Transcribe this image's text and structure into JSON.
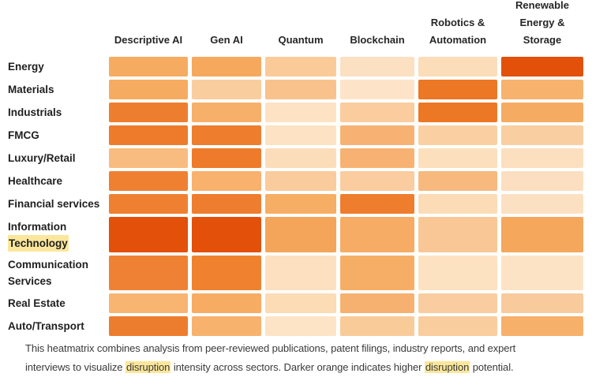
{
  "colors": {
    "background": "#FFFFFF",
    "highlight": "#FBE79B",
    "header_text": "#262626",
    "row_label_text": "#1F1F1F",
    "caption_text": "#3A3A3A",
    "scale_darkest": "#E2500A",
    "scale_dark": "#EE7D2E",
    "scale_medium": "#F6AC60",
    "scale_light": "#FACB99",
    "scale_lightest": "#FCE0C2"
  },
  "header": {
    "column_lines": [
      [
        "Descriptive AI"
      ],
      [
        "Gen AI"
      ],
      [
        "Quantum"
      ],
      [
        "Blockchain"
      ],
      [
        "Robotics &",
        "Automation"
      ],
      [
        "Renewable",
        "Energy &",
        "Storage"
      ]
    ]
  },
  "row_labels": [
    {
      "lines": [
        {
          "text": "Energy",
          "hl": false
        }
      ]
    },
    {
      "lines": [
        {
          "text": "Materials",
          "hl": false
        }
      ]
    },
    {
      "lines": [
        {
          "text": "Industrials",
          "hl": false
        }
      ]
    },
    {
      "lines": [
        {
          "text": "FMCG",
          "hl": false
        }
      ]
    },
    {
      "lines": [
        {
          "text": "Luxury/Retail",
          "hl": false
        }
      ]
    },
    {
      "lines": [
        {
          "text": "Healthcare",
          "hl": false
        }
      ]
    },
    {
      "lines": [
        {
          "text": "Financial services",
          "hl": false
        }
      ]
    },
    {
      "lines": [
        {
          "text": "Information",
          "hl": false
        },
        {
          "text": "Technology",
          "hl": true
        }
      ]
    },
    {
      "lines": [
        {
          "text": "Communication",
          "hl": false
        },
        {
          "text": "Services",
          "hl": false
        }
      ]
    },
    {
      "lines": [
        {
          "text": "Real Estate",
          "hl": false
        }
      ]
    },
    {
      "lines": [
        {
          "text": "Auto/Transport",
          "hl": false
        }
      ]
    }
  ],
  "chart_data": {
    "type": "heatmap",
    "title": "",
    "columns": [
      "Descriptive AI",
      "Gen AI",
      "Quantum",
      "Blockchain",
      "Robotics & Automation",
      "Renewable Energy & Storage"
    ],
    "rows": [
      "Energy",
      "Materials",
      "Industrials",
      "FMCG",
      "Luxury/Retail",
      "Healthcare",
      "Financial services",
      "Information Technology",
      "Communication Services",
      "Real Estate",
      "Auto/Transport"
    ],
    "value_meaning": "disruption intensity, 1 = lowest (palest orange) to 5 = highest (darkest orange)",
    "values": [
      [
        3,
        3,
        2,
        1,
        1,
        5
      ],
      [
        3,
        2,
        2,
        1,
        4,
        3
      ],
      [
        4,
        3,
        1,
        2,
        4,
        3
      ],
      [
        4,
        4,
        1,
        3,
        2,
        2
      ],
      [
        2,
        4,
        1,
        3,
        1,
        1
      ],
      [
        4,
        3,
        2,
        2,
        3,
        1
      ],
      [
        4,
        4,
        3,
        4,
        1,
        1
      ],
      [
        5,
        5,
        3,
        3,
        2,
        3
      ],
      [
        4,
        4,
        1,
        3,
        1,
        1
      ],
      [
        3,
        3,
        1,
        3,
        2,
        2
      ],
      [
        4,
        3,
        1,
        2,
        2,
        3
      ]
    ],
    "cell_colors": [
      [
        "#F6AC60",
        "#F6A95C",
        "#FACB99",
        "#FCE0C2",
        "#FBDDBA",
        "#E2500A"
      ],
      [
        "#F6AC60",
        "#FACD9F",
        "#F9C28C",
        "#FDE4C8",
        "#EC7724",
        "#F7B26E"
      ],
      [
        "#EE7E2F",
        "#F7B06A",
        "#FDE2C4",
        "#FACC9E",
        "#EC7724",
        "#F5AC62"
      ],
      [
        "#EE7B2C",
        "#EE7D2E",
        "#FDE2C4",
        "#F7B273",
        "#FAD0A2",
        "#F9CFA2"
      ],
      [
        "#F9BC80",
        "#EE7B2B",
        "#FCDDBA",
        "#F7B273",
        "#FCDFBC",
        "#FCDFBE"
      ],
      [
        "#EF8032",
        "#F8B26E",
        "#FACB9C",
        "#FACC9F",
        "#F7B97E",
        "#FCDFC0"
      ],
      [
        "#EF8032",
        "#EE7D30",
        "#F6AE64",
        "#EE7D2E",
        "#FBDCB6",
        "#FCE0C2"
      ],
      [
        "#E2500A",
        "#E2500A",
        "#F5A559",
        "#F6AC64",
        "#F9C795",
        "#F5A75C"
      ],
      [
        "#EF8135",
        "#EF812F",
        "#FCE0BF",
        "#F6AE66",
        "#FDE2C2",
        "#FDE3C6"
      ],
      [
        "#F8B572",
        "#F7AC63",
        "#FBDCB4",
        "#F6B170",
        "#F9CD9F",
        "#F9CB9C"
      ],
      [
        "#ED7D2E",
        "#F7B26E",
        "#FDE4C6",
        "#F9CB99",
        "#F9CD9E",
        "#F6B06A"
      ]
    ],
    "legend": "Darker orange indicates higher disruption potential",
    "grid": false
  },
  "caption": {
    "lines": [
      {
        "parts": [
          {
            "text": "This heatmatrix combines analysis from peer-reviewed publications, patent filings, industry reports, and expert",
            "hl": false
          }
        ]
      },
      {
        "parts": [
          {
            "text": "interviews to visualize ",
            "hl": false
          },
          {
            "text": "disruption",
            "hl": true
          },
          {
            "text": " intensity across sectors. Darker orange indicates higher ",
            "hl": false
          },
          {
            "text": "disruption",
            "hl": true
          },
          {
            "text": " potential.",
            "hl": false
          }
        ]
      }
    ]
  }
}
